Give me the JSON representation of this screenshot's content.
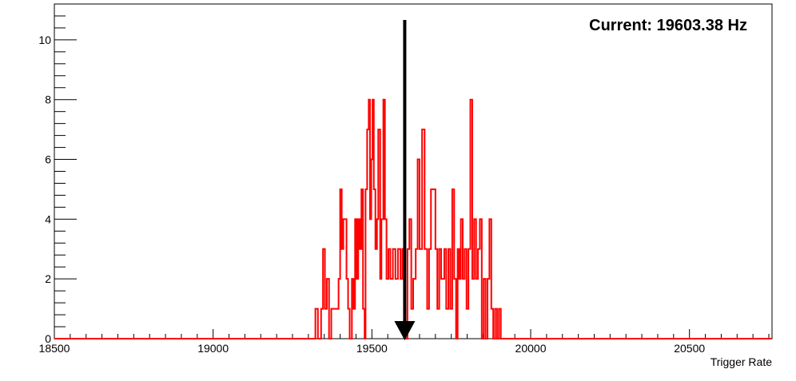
{
  "chart_data": {
    "type": "histogram",
    "title": "",
    "annotation": "Current: 19603.38 Hz",
    "xlabel": "Trigger Rate",
    "ylabel": "",
    "xlim": [
      18500,
      20760
    ],
    "ylim": [
      0,
      11.2
    ],
    "x_ticks": [
      18500,
      19000,
      19500,
      20000,
      20500
    ],
    "y_ticks": [
      0,
      2,
      4,
      6,
      8,
      10
    ],
    "line_color": "#ff0000",
    "marker_color": "#000000",
    "marker_x": 19603.38,
    "bins": [
      [
        19310,
        19322,
        0
      ],
      [
        19322,
        19330,
        1
      ],
      [
        19330,
        19340,
        0
      ],
      [
        19340,
        19346,
        1
      ],
      [
        19346,
        19352,
        3
      ],
      [
        19352,
        19358,
        1
      ],
      [
        19358,
        19365,
        2
      ],
      [
        19365,
        19372,
        0
      ],
      [
        19372,
        19380,
        1
      ],
      [
        19380,
        19395,
        1
      ],
      [
        19395,
        19400,
        2
      ],
      [
        19400,
        19405,
        5
      ],
      [
        19405,
        19410,
        3
      ],
      [
        19410,
        19420,
        4
      ],
      [
        19420,
        19425,
        2
      ],
      [
        19425,
        19430,
        1
      ],
      [
        19430,
        19437,
        0
      ],
      [
        19437,
        19442,
        2
      ],
      [
        19442,
        19447,
        1
      ],
      [
        19447,
        19452,
        4
      ],
      [
        19452,
        19457,
        2
      ],
      [
        19457,
        19462,
        4
      ],
      [
        19462,
        19467,
        3
      ],
      [
        19467,
        19472,
        5
      ],
      [
        19472,
        19477,
        1
      ],
      [
        19477,
        19480,
        0
      ],
      [
        19480,
        19485,
        5
      ],
      [
        19485,
        19490,
        7
      ],
      [
        19490,
        19494,
        8
      ],
      [
        19494,
        19498,
        4
      ],
      [
        19498,
        19502,
        6
      ],
      [
        19502,
        19506,
        8
      ],
      [
        19506,
        19511,
        5
      ],
      [
        19511,
        19516,
        3
      ],
      [
        19516,
        19520,
        4
      ],
      [
        19520,
        19526,
        7
      ],
      [
        19526,
        19530,
        2
      ],
      [
        19530,
        19536,
        4
      ],
      [
        19536,
        19541,
        8
      ],
      [
        19541,
        19546,
        4
      ],
      [
        19546,
        19552,
        2
      ],
      [
        19552,
        19558,
        3
      ],
      [
        19558,
        19566,
        2
      ],
      [
        19566,
        19574,
        3
      ],
      [
        19574,
        19582,
        2
      ],
      [
        19582,
        19590,
        3
      ],
      [
        19590,
        19596,
        2
      ],
      [
        19596,
        19602,
        3
      ],
      [
        19602,
        19606,
        1
      ],
      [
        19606,
        19612,
        0
      ],
      [
        19612,
        19618,
        3
      ],
      [
        19618,
        19624,
        4
      ],
      [
        19624,
        19630,
        1
      ],
      [
        19630,
        19638,
        2
      ],
      [
        19638,
        19644,
        3
      ],
      [
        19644,
        19650,
        6
      ],
      [
        19650,
        19658,
        3
      ],
      [
        19658,
        19666,
        7
      ],
      [
        19666,
        19674,
        3
      ],
      [
        19674,
        19680,
        1
      ],
      [
        19680,
        19686,
        3
      ],
      [
        19686,
        19700,
        5
      ],
      [
        19700,
        19706,
        3
      ],
      [
        19706,
        19712,
        1
      ],
      [
        19712,
        19718,
        3
      ],
      [
        19718,
        19728,
        2
      ],
      [
        19728,
        19734,
        3
      ],
      [
        19734,
        19741,
        1
      ],
      [
        19741,
        19747,
        3
      ],
      [
        19747,
        19753,
        1
      ],
      [
        19753,
        19759,
        5
      ],
      [
        19759,
        19765,
        2
      ],
      [
        19765,
        19770,
        0
      ],
      [
        19770,
        19775,
        3
      ],
      [
        19775,
        19780,
        2
      ],
      [
        19780,
        19786,
        4
      ],
      [
        19786,
        19792,
        2
      ],
      [
        19792,
        19798,
        3
      ],
      [
        19798,
        19804,
        1
      ],
      [
        19804,
        19810,
        3
      ],
      [
        19810,
        19816,
        8
      ],
      [
        19816,
        19822,
        2
      ],
      [
        19822,
        19828,
        4
      ],
      [
        19828,
        19834,
        2
      ],
      [
        19834,
        19840,
        3
      ],
      [
        19840,
        19846,
        4
      ],
      [
        19846,
        19852,
        0
      ],
      [
        19852,
        19858,
        2
      ],
      [
        19858,
        19864,
        0
      ],
      [
        19864,
        19870,
        2
      ],
      [
        19870,
        19876,
        4
      ],
      [
        19876,
        19882,
        1
      ],
      [
        19882,
        19888,
        0
      ],
      [
        19888,
        19894,
        1
      ],
      [
        19894,
        19900,
        0
      ],
      [
        19900,
        19906,
        1
      ],
      [
        19906,
        19912,
        0
      ]
    ]
  }
}
